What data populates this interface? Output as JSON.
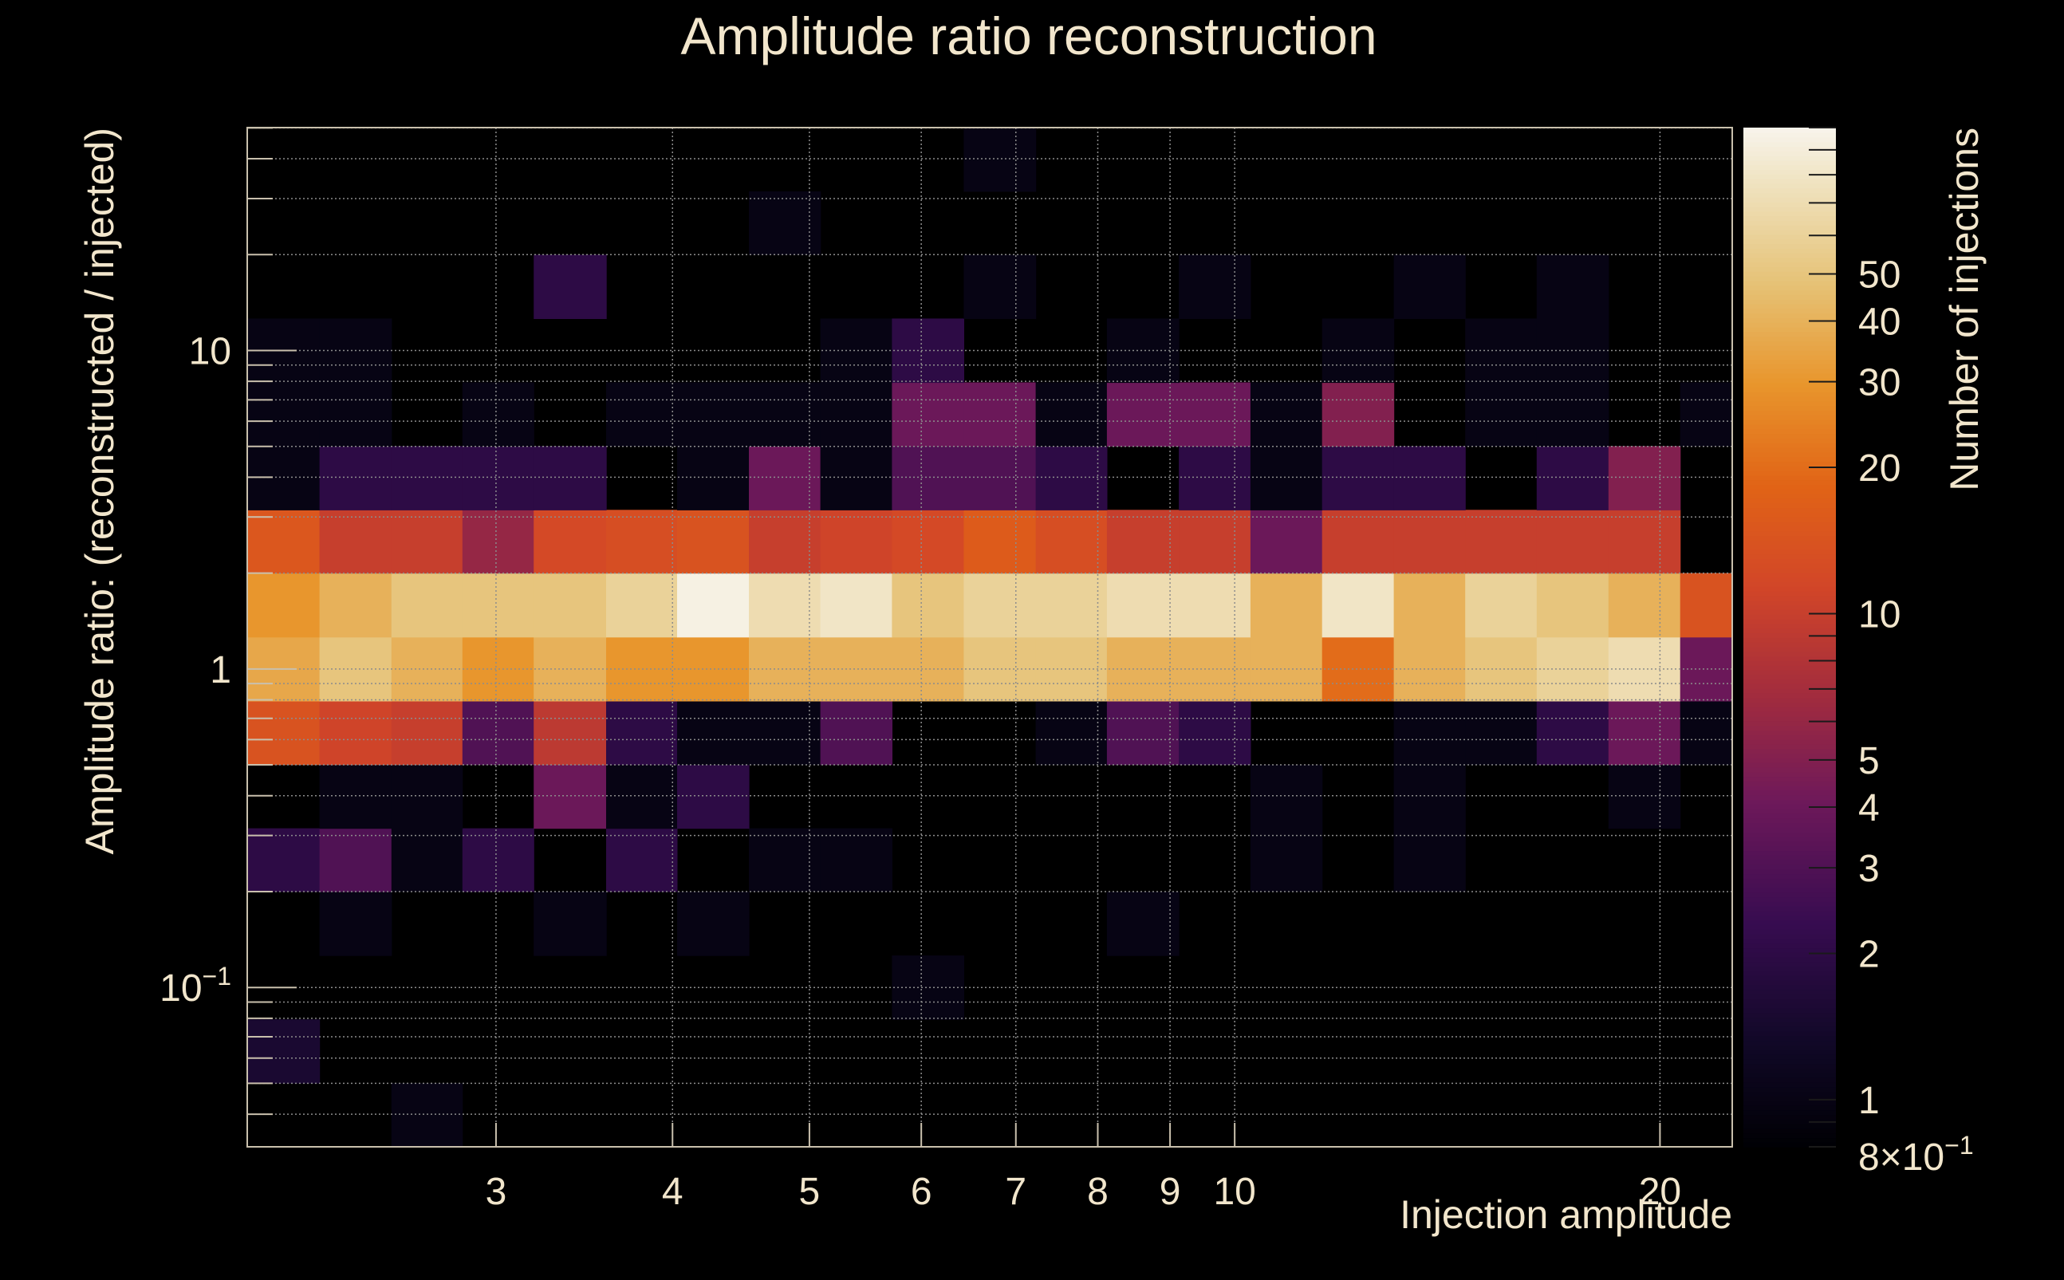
{
  "chart_data": {
    "type": "heatmap",
    "title": "Amplitude ratio reconstruction",
    "xlabel": "Injection amplitude",
    "ylabel": "Amplitude ratio: (reconstructed / injected)",
    "zlabel": "Number of injections",
    "xscale": "log",
    "yscale": "log",
    "zscale": "log",
    "xlim": [
      2.0,
      22.5
    ],
    "ylim": [
      0.0316,
      50.1
    ],
    "zlim": [
      0.8,
      100
    ],
    "grid": true,
    "x_ticks": [
      {
        "value": 3,
        "label": "3"
      },
      {
        "value": 4,
        "label": "4"
      },
      {
        "value": 5,
        "label": "5"
      },
      {
        "value": 6,
        "label": "6"
      },
      {
        "value": 7,
        "label": "7"
      },
      {
        "value": 8,
        "label": "8"
      },
      {
        "value": 9,
        "label": "9"
      },
      {
        "value": 10,
        "label": "10"
      },
      {
        "value": 20,
        "label": "20"
      }
    ],
    "y_ticks": [
      {
        "value": 0.1,
        "label": "10",
        "sup": "−1"
      },
      {
        "value": 1,
        "label": "1"
      },
      {
        "value": 10,
        "label": "10"
      }
    ],
    "z_ticks": [
      {
        "value": 0.8,
        "label": "8×10",
        "sup": "−1"
      },
      {
        "value": 1,
        "label": "1"
      },
      {
        "value": 2,
        "label": "2"
      },
      {
        "value": 3,
        "label": "3"
      },
      {
        "value": 4,
        "label": "4"
      },
      {
        "value": 5,
        "label": "5"
      },
      {
        "value": 10,
        "label": "10"
      },
      {
        "value": 20,
        "label": "20"
      },
      {
        "value": 30,
        "label": "30"
      },
      {
        "value": 40,
        "label": "40"
      },
      {
        "value": 50,
        "label": "50"
      }
    ],
    "x_bin_edges": [
      2.0,
      2.25,
      2.53,
      2.84,
      3.19,
      3.59,
      4.03,
      4.53,
      5.09,
      5.72,
      6.43,
      7.23,
      8.12,
      9.13,
      10.26,
      11.53,
      12.96,
      14.56,
      16.36,
      18.39,
      20.67,
      22.5
    ],
    "y_bin_edges": [
      0.0316,
      0.0501,
      0.0794,
      0.126,
      0.2,
      0.316,
      0.501,
      0.794,
      1.26,
      2.0,
      3.16,
      5.01,
      7.94,
      12.6,
      20.0,
      31.6,
      50.1
    ],
    "z_matrix_note": "rows ordered from lowest ratio bin to highest; columns ordered from lowest amplitude bin to highest; 0 = empty",
    "z": [
      [
        0,
        0,
        1,
        0,
        0,
        0,
        0,
        0,
        0,
        0,
        0,
        0,
        0,
        0,
        0,
        0,
        0,
        0,
        0,
        0,
        0
      ],
      [
        1.5,
        0,
        0,
        0,
        0,
        0,
        0,
        0,
        0,
        0,
        0,
        0,
        0,
        0,
        0,
        0,
        0,
        0,
        0,
        0,
        0
      ],
      [
        0,
        0,
        0,
        0,
        0,
        0,
        0,
        0,
        0,
        1,
        0,
        0,
        0,
        0,
        0,
        0,
        0,
        0,
        0,
        0,
        0
      ],
      [
        0,
        1,
        0,
        0,
        1,
        0,
        1,
        0,
        0,
        0,
        0,
        0,
        1,
        0,
        0,
        0,
        0,
        0,
        0,
        0,
        0
      ],
      [
        2,
        3,
        1,
        2,
        0,
        2,
        0,
        1,
        1,
        0,
        0,
        0,
        0,
        0,
        1,
        0,
        1,
        0,
        0,
        0,
        0
      ],
      [
        0,
        1,
        1,
        0,
        4,
        1,
        2,
        0,
        0,
        0,
        0,
        0,
        0,
        0,
        1,
        0,
        1,
        0,
        0,
        1,
        0
      ],
      [
        14,
        11,
        10,
        3,
        9,
        2,
        1,
        1,
        3,
        0,
        0,
        1,
        3,
        2,
        0,
        0,
        1,
        1,
        2,
        4,
        1
      ],
      [
        36,
        50,
        40,
        30,
        40,
        30,
        30,
        40,
        40,
        40,
        50,
        50,
        40,
        40,
        40,
        20,
        40,
        50,
        60,
        70,
        4
      ],
      [
        30,
        40,
        50,
        50,
        50,
        60,
        95,
        70,
        80,
        50,
        60,
        60,
        70,
        70,
        40,
        80,
        40,
        60,
        50,
        40,
        14
      ],
      [
        15,
        10,
        10,
        6,
        12,
        13,
        14,
        10,
        11,
        12,
        16,
        13,
        10,
        10,
        4,
        10,
        10,
        10,
        10,
        10,
        0
      ],
      [
        1,
        2,
        2,
        2,
        2,
        0,
        1,
        4,
        1,
        3,
        3,
        2,
        0,
        2,
        1,
        2,
        2,
        0,
        2,
        5,
        0
      ],
      [
        1,
        1,
        0,
        1,
        0,
        1,
        1,
        1,
        1,
        4,
        4,
        1,
        4,
        4,
        1,
        5,
        0,
        1,
        1,
        0,
        1
      ],
      [
        1,
        1,
        0,
        0,
        0,
        0,
        0,
        0,
        1,
        2,
        0,
        0,
        1,
        0,
        0,
        1,
        0,
        1,
        1,
        0,
        0
      ],
      [
        0,
        0,
        0,
        0,
        2,
        0,
        0,
        0,
        0,
        0,
        1,
        0,
        0,
        1,
        0,
        0,
        1,
        0,
        1,
        0,
        0
      ],
      [
        0,
        0,
        0,
        0,
        0,
        0,
        0,
        1,
        0,
        0,
        0,
        0,
        0,
        0,
        0,
        0,
        0,
        0,
        0,
        0,
        0
      ],
      [
        0,
        0,
        0,
        0,
        0,
        0,
        0,
        0,
        0,
        0,
        1,
        0,
        0,
        0,
        0,
        0,
        0,
        0,
        0,
        0,
        0
      ]
    ]
  },
  "colors": {
    "background": "#000000",
    "text": "#f2e6cc",
    "grid": "#8c8c8c",
    "frame": "#c9c0ad",
    "colormap": "inferno"
  }
}
